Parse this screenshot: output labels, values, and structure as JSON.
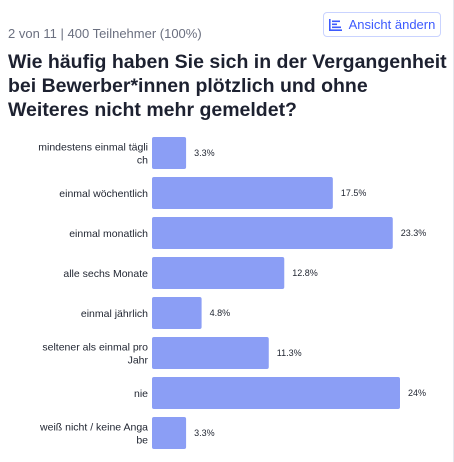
{
  "header": {
    "meta_text": "2 von 11 | 400 Teilnehmer (100%)",
    "view_button_label": "Ansicht ändern",
    "view_button_icon": "bar-chart-icon"
  },
  "question": "Wie häufig haben Sie sich in der Vergangenheit bei Bewerber*innen plötzlich und ohne Weiteres nicht mehr gemeldet?",
  "colors": {
    "bar": "#8b9ef5",
    "accent": "#3d5afe"
  },
  "chart_data": {
    "type": "bar",
    "orientation": "horizontal",
    "categories": [
      [
        "mindestens einmal tägli",
        "ch"
      ],
      [
        "einmal wöchentlich"
      ],
      [
        "einmal monatlich"
      ],
      [
        "alle sechs Monate"
      ],
      [
        "einmal jährlich"
      ],
      [
        "seltener als einmal pro",
        "Jahr"
      ],
      [
        "nie"
      ],
      [
        "weiß nicht / keine Anga",
        "be"
      ]
    ],
    "values": [
      3.3,
      17.5,
      23.3,
      12.8,
      4.8,
      11.3,
      24,
      3.3
    ],
    "value_labels": [
      "3.3%",
      "17.5%",
      "23.3%",
      "12.8%",
      "4.8%",
      "11.3%",
      "24%",
      "3.3%"
    ],
    "unit": "%",
    "xlim": [
      0,
      24
    ]
  }
}
